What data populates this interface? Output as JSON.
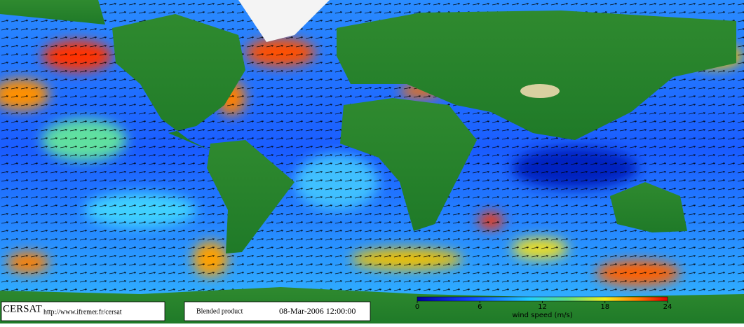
{
  "footer": {
    "logo": "CERSAT",
    "url": "http://www.ifremer.fr/cersat",
    "product": "Blended product",
    "date": "08-Mar-2006 12:00:00"
  },
  "colorbar": {
    "label": "wind speed (m/s)",
    "lim": [
      0,
      24
    ],
    "ticks": [
      0,
      6,
      12,
      18,
      24
    ]
  }
}
